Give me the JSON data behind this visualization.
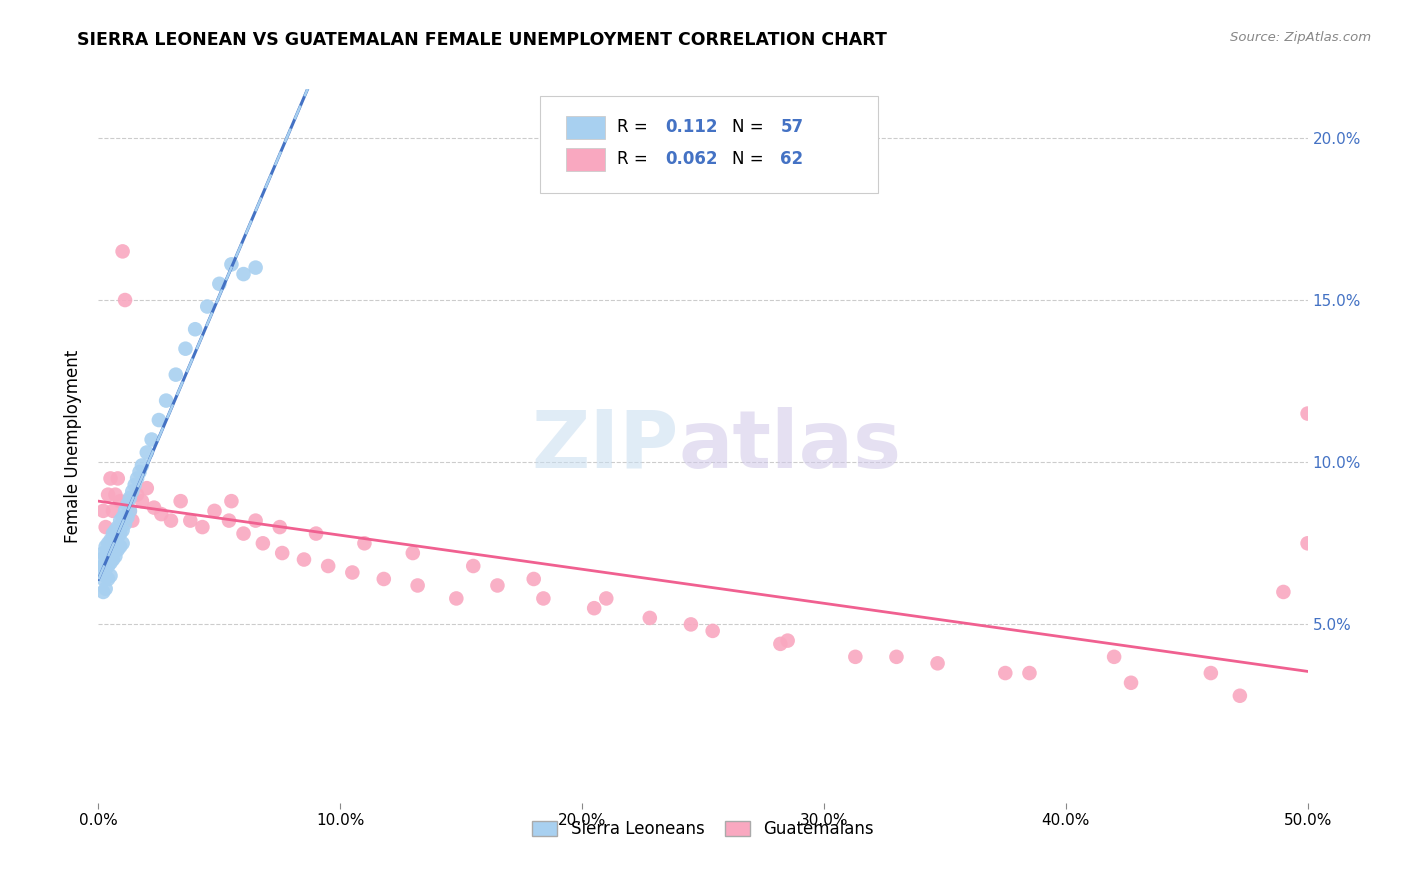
{
  "title": "SIERRA LEONEAN VS GUATEMALAN FEMALE UNEMPLOYMENT CORRELATION CHART",
  "source": "Source: ZipAtlas.com",
  "ylabel": "Female Unemployment",
  "right_yticks": [
    "5.0%",
    "10.0%",
    "15.0%",
    "20.0%"
  ],
  "right_ytick_values": [
    0.05,
    0.1,
    0.15,
    0.2
  ],
  "xlim": [
    0.0,
    0.5
  ],
  "ylim": [
    -0.005,
    0.215
  ],
  "sierra_color": "#a8d0f0",
  "guatemalan_color": "#f9a8c0",
  "sierra_line_color": "#4472c4",
  "sierra_dash_color": "#a8d0f0",
  "guatemalan_line_color": "#f06090",
  "background_color": "#ffffff",
  "watermark_zip": "ZIP",
  "watermark_atlas": "atlas",
  "legend_label_1": "Sierra Leoneans",
  "legend_label_2": "Guatemalans",
  "sl_R": "0.112",
  "sl_N": "57",
  "gt_R": "0.062",
  "gt_N": "62",
  "sl_x": [
    0.001,
    0.001,
    0.002,
    0.002,
    0.002,
    0.002,
    0.003,
    0.003,
    0.003,
    0.003,
    0.003,
    0.004,
    0.004,
    0.004,
    0.004,
    0.005,
    0.005,
    0.005,
    0.005,
    0.006,
    0.006,
    0.006,
    0.007,
    0.007,
    0.007,
    0.008,
    0.008,
    0.008,
    0.009,
    0.009,
    0.009,
    0.01,
    0.01,
    0.01,
    0.011,
    0.011,
    0.012,
    0.012,
    0.013,
    0.013,
    0.014,
    0.015,
    0.016,
    0.017,
    0.018,
    0.02,
    0.022,
    0.025,
    0.028,
    0.032,
    0.036,
    0.04,
    0.045,
    0.05,
    0.055,
    0.06,
    0.065
  ],
  "sl_y": [
    0.07,
    0.066,
    0.072,
    0.068,
    0.064,
    0.06,
    0.074,
    0.071,
    0.068,
    0.065,
    0.061,
    0.075,
    0.072,
    0.068,
    0.064,
    0.076,
    0.073,
    0.069,
    0.065,
    0.078,
    0.074,
    0.07,
    0.079,
    0.075,
    0.071,
    0.08,
    0.077,
    0.073,
    0.082,
    0.078,
    0.074,
    0.083,
    0.079,
    0.075,
    0.085,
    0.081,
    0.087,
    0.083,
    0.089,
    0.085,
    0.091,
    0.093,
    0.095,
    0.097,
    0.099,
    0.103,
    0.107,
    0.113,
    0.119,
    0.127,
    0.135,
    0.141,
    0.148,
    0.155,
    0.161,
    0.158,
    0.16
  ],
  "gt_x": [
    0.002,
    0.003,
    0.004,
    0.005,
    0.006,
    0.007,
    0.008,
    0.009,
    0.01,
    0.011,
    0.012,
    0.013,
    0.014,
    0.016,
    0.018,
    0.02,
    0.023,
    0.026,
    0.03,
    0.034,
    0.038,
    0.043,
    0.048,
    0.054,
    0.06,
    0.068,
    0.076,
    0.085,
    0.095,
    0.105,
    0.118,
    0.132,
    0.148,
    0.165,
    0.184,
    0.205,
    0.228,
    0.254,
    0.282,
    0.313,
    0.347,
    0.385,
    0.427,
    0.472,
    0.5,
    0.055,
    0.065,
    0.075,
    0.09,
    0.11,
    0.13,
    0.155,
    0.18,
    0.21,
    0.245,
    0.285,
    0.33,
    0.375,
    0.42,
    0.46,
    0.49,
    0.5
  ],
  "gt_y": [
    0.085,
    0.08,
    0.09,
    0.095,
    0.085,
    0.09,
    0.095,
    0.088,
    0.165,
    0.15,
    0.088,
    0.085,
    0.082,
    0.09,
    0.088,
    0.092,
    0.086,
    0.084,
    0.082,
    0.088,
    0.082,
    0.08,
    0.085,
    0.082,
    0.078,
    0.075,
    0.072,
    0.07,
    0.068,
    0.066,
    0.064,
    0.062,
    0.058,
    0.062,
    0.058,
    0.055,
    0.052,
    0.048,
    0.044,
    0.04,
    0.038,
    0.035,
    0.032,
    0.028,
    0.075,
    0.088,
    0.082,
    0.08,
    0.078,
    0.075,
    0.072,
    0.068,
    0.064,
    0.058,
    0.05,
    0.045,
    0.04,
    0.035,
    0.04,
    0.035,
    0.06,
    0.115
  ]
}
